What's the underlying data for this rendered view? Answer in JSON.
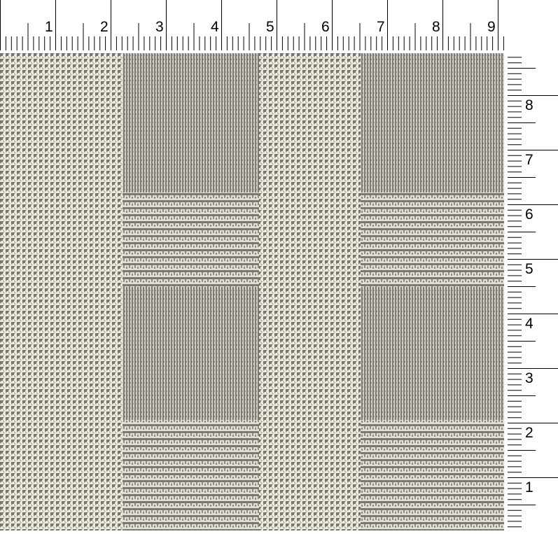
{
  "top_ruler": {
    "labels": [
      "1",
      "2",
      "3",
      "4",
      "5",
      "6",
      "7",
      "8",
      "9"
    ]
  },
  "right_ruler": {
    "labels": [
      "8",
      "7",
      "6",
      "5",
      "4",
      "3",
      "2",
      "1"
    ]
  },
  "fabric": {
    "pattern": "glen plaid",
    "light_color": "#eeebdd",
    "dark_color": "#6f6e6a"
  }
}
